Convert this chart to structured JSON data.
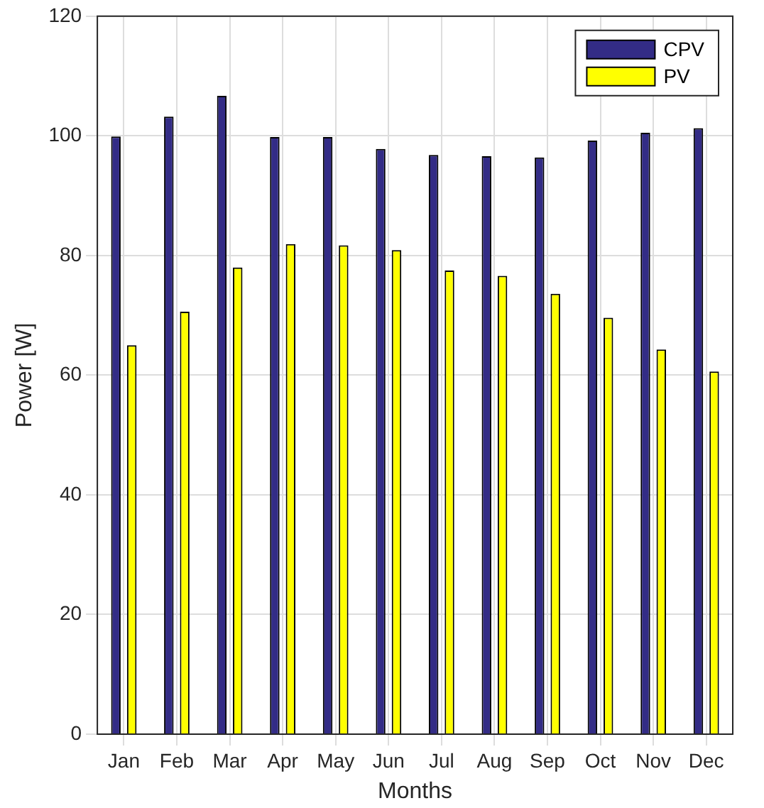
{
  "chart_data": {
    "type": "bar",
    "xlabel": "Months",
    "ylabel": "Power [W]",
    "categories": [
      "Jan",
      "Feb",
      "Mar",
      "Apr",
      "May",
      "Jun",
      "Jul",
      "Aug",
      "Sep",
      "Oct",
      "Nov",
      "Dec"
    ],
    "series": [
      {
        "name": "CPV",
        "color": "#332c86",
        "values": [
          99.9,
          103.2,
          106.7,
          99.8,
          99.8,
          97.8,
          96.8,
          96.6,
          96.4,
          99.2,
          100.5,
          101.3
        ]
      },
      {
        "name": "PV",
        "color": "#ffff00",
        "values": [
          65,
          70.6,
          78,
          81.9,
          81.7,
          80.9,
          77.5,
          76.6,
          73.6,
          69.6,
          64.3,
          60.6
        ]
      }
    ],
    "ylim": [
      0,
      120
    ],
    "yticks": [
      0,
      20,
      40,
      60,
      80,
      100,
      120
    ],
    "grid": true,
    "legend": "top right"
  }
}
